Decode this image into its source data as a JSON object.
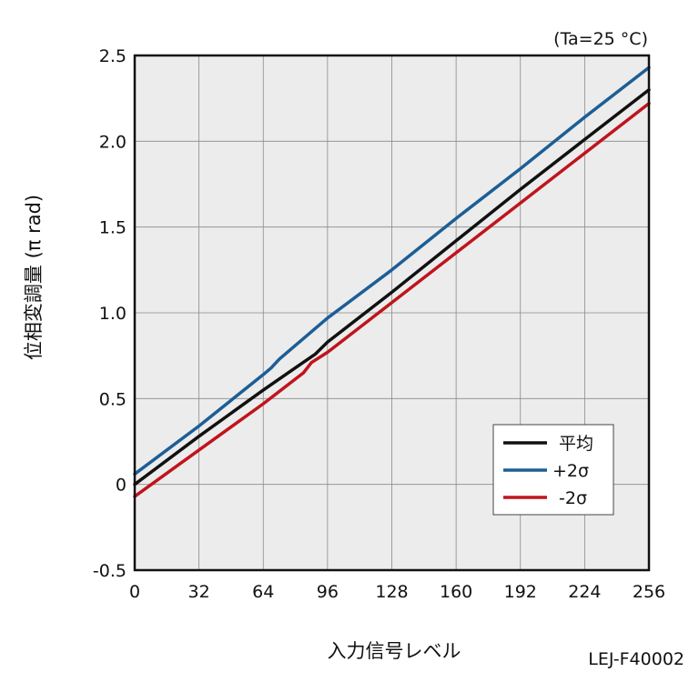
{
  "chart_data": {
    "type": "line",
    "xlabel": "入力信号レベル",
    "ylabel": "位相変調量 (π rad)",
    "annotation": "(Ta=25 °C)",
    "footer_id": "LEJ-F40002",
    "xlim": [
      0,
      256
    ],
    "ylim": [
      -0.5,
      2.5
    ],
    "x_ticks": [
      0,
      32,
      64,
      96,
      128,
      160,
      192,
      224,
      256
    ],
    "x_tick_labels": [
      "0",
      "32",
      "64",
      "96",
      "128",
      "160",
      "192",
      "224",
      "256"
    ],
    "y_ticks": [
      -0.5,
      0,
      0.5,
      1.0,
      1.5,
      2.0,
      2.5
    ],
    "y_tick_labels": [
      "-0.5",
      "0",
      "0.5",
      "1.0",
      "1.5",
      "2.0",
      "2.5"
    ],
    "grid": true,
    "legend_position": "bottom-right",
    "series": [
      {
        "name": "平均",
        "color": "#111111",
        "x": [
          0,
          32,
          64,
          80,
          90,
          96,
          128,
          160,
          192,
          224,
          256
        ],
        "y": [
          0.0,
          0.28,
          0.55,
          0.68,
          0.76,
          0.83,
          1.12,
          1.42,
          1.72,
          2.01,
          2.3
        ]
      },
      {
        "name": "+2σ",
        "color": "#1c5e96",
        "x": [
          0,
          32,
          64,
          68,
          72,
          96,
          128,
          160,
          192,
          224,
          256
        ],
        "y": [
          0.06,
          0.34,
          0.64,
          0.68,
          0.73,
          0.97,
          1.25,
          1.55,
          1.84,
          2.14,
          2.43
        ]
      },
      {
        "name": "-2σ",
        "color": "#c0141c",
        "x": [
          0,
          32,
          64,
          84,
          88,
          96,
          128,
          160,
          192,
          224,
          256
        ],
        "y": [
          -0.07,
          0.2,
          0.47,
          0.65,
          0.71,
          0.77,
          1.06,
          1.35,
          1.64,
          1.93,
          2.22
        ]
      }
    ]
  }
}
